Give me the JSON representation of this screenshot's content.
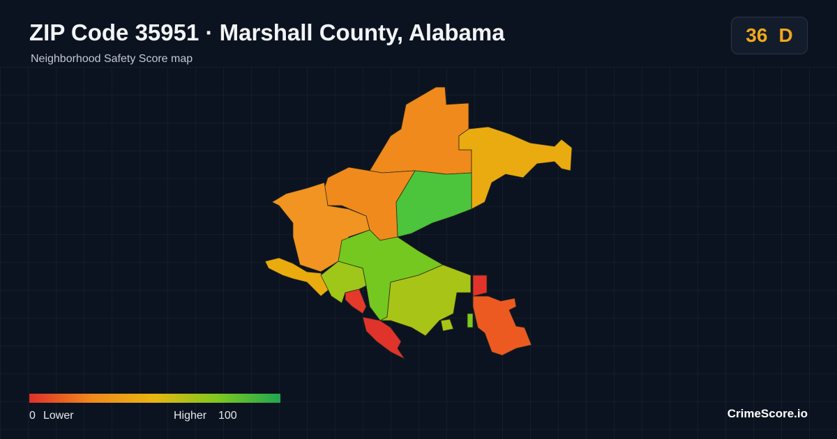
{
  "header": {
    "title": "ZIP Code 35951 · Marshall County, Alabama",
    "subtitle": "Neighborhood Safety Score map"
  },
  "badge": {
    "score": 36,
    "grade": "D"
  },
  "legend": {
    "min": 0,
    "min_label": "Lower",
    "max_label": "Higher",
    "max": 100
  },
  "brand": "CrimeScore.io"
}
